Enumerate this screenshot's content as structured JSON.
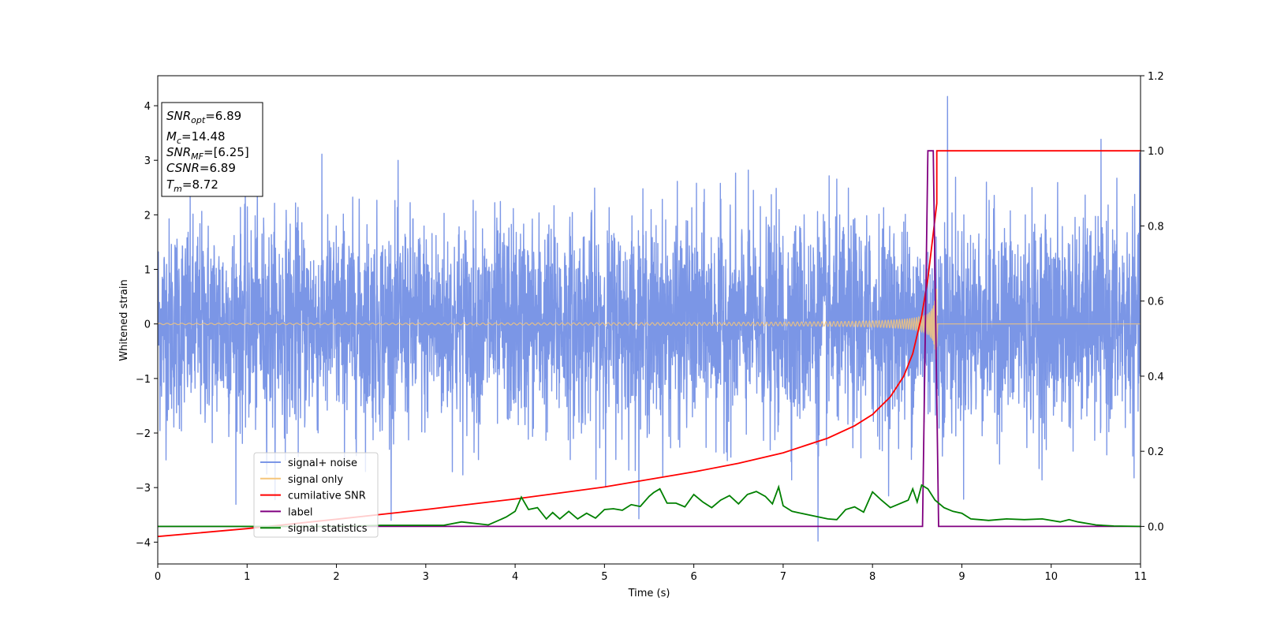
{
  "chart_data": {
    "type": "line",
    "xlabel": "Time (s)",
    "ylabel": "Whitened strain",
    "xlim": [
      0,
      11
    ],
    "ylim": [
      -4.4,
      4.55
    ],
    "y2lim": [
      -0.1,
      1.2
    ],
    "x_ticks": [
      0,
      1,
      2,
      3,
      4,
      5,
      6,
      7,
      8,
      9,
      10,
      11
    ],
    "y_ticks": [
      -4,
      -3,
      -2,
      -1,
      0,
      1,
      2,
      3,
      4
    ],
    "y2_ticks": [
      "0.0",
      "0.2",
      "0.4",
      "0.6",
      "0.8",
      "1.0",
      "1.2"
    ],
    "legend_position": "lower-left",
    "series": [
      {
        "name": "signal+ noise",
        "axis": "left",
        "color": "#7b96e6",
        "form": "noise",
        "noise_sigma": 0.95,
        "peak": [
          8.84,
          4.17
        ],
        "trough": [
          7.39,
          -3.98
        ]
      },
      {
        "name": "signal only",
        "axis": "left",
        "color": "#f5c57a",
        "form": "chirp",
        "merger_time": 8.72,
        "end_amplitude": 0.65
      },
      {
        "name": "cumilative SNR",
        "axis": "right",
        "color": "#ff0000",
        "x": [
          0,
          1,
          2,
          3,
          4,
          5,
          6,
          6.5,
          7,
          7.5,
          7.8,
          8,
          8.2,
          8.35,
          8.45,
          8.55,
          8.62,
          8.68,
          8.72,
          8.72,
          11
        ],
        "values": [
          -0.027,
          -0.006,
          0.019,
          0.045,
          0.073,
          0.105,
          0.145,
          0.168,
          0.196,
          0.235,
          0.268,
          0.298,
          0.345,
          0.4,
          0.46,
          0.56,
          0.66,
          0.78,
          0.86,
          1.0,
          1.0
        ]
      },
      {
        "name": "label",
        "axis": "right",
        "color": "#800080",
        "x": [
          0,
          8.56,
          8.62,
          8.68,
          8.74,
          11
        ],
        "values": [
          0,
          0,
          1,
          1,
          0,
          0
        ]
      },
      {
        "name": "signal statistics",
        "axis": "right",
        "color": "#008000",
        "x": [
          0,
          1,
          2,
          2.5,
          3.2,
          3.4,
          3.7,
          3.9,
          4.0,
          4.07,
          4.15,
          4.25,
          4.35,
          4.42,
          4.5,
          4.6,
          4.7,
          4.8,
          4.9,
          5.0,
          5.1,
          5.2,
          5.3,
          5.4,
          5.5,
          5.55,
          5.62,
          5.7,
          5.8,
          5.9,
          6.0,
          6.1,
          6.2,
          6.3,
          6.4,
          6.5,
          6.6,
          6.7,
          6.8,
          6.88,
          6.95,
          7.0,
          7.1,
          7.2,
          7.3,
          7.4,
          7.5,
          7.6,
          7.7,
          7.8,
          7.9,
          8.0,
          8.1,
          8.2,
          8.3,
          8.4,
          8.45,
          8.5,
          8.55,
          8.62,
          8.7,
          8.8,
          8.9,
          9.0,
          9.1,
          9.2,
          9.3,
          9.5,
          9.7,
          9.9,
          10.1,
          10.2,
          10.3,
          10.5,
          10.7,
          11
        ],
        "values": [
          0.0,
          0.0,
          0.0,
          0.003,
          0.003,
          0.012,
          0.004,
          0.025,
          0.04,
          0.078,
          0.045,
          0.05,
          0.02,
          0.037,
          0.02,
          0.04,
          0.02,
          0.035,
          0.022,
          0.045,
          0.047,
          0.043,
          0.058,
          0.053,
          0.08,
          0.09,
          0.1,
          0.062,
          0.062,
          0.052,
          0.085,
          0.065,
          0.05,
          0.07,
          0.082,
          0.06,
          0.085,
          0.093,
          0.08,
          0.06,
          0.105,
          0.055,
          0.04,
          0.035,
          0.03,
          0.025,
          0.02,
          0.018,
          0.045,
          0.052,
          0.038,
          0.092,
          0.07,
          0.05,
          0.06,
          0.07,
          0.1,
          0.065,
          0.11,
          0.1,
          0.07,
          0.05,
          0.04,
          0.035,
          0.02,
          0.018,
          0.016,
          0.02,
          0.018,
          0.02,
          0.012,
          0.018,
          0.012,
          0.004,
          0.001,
          0.0
        ]
      }
    ],
    "annotation": [
      {
        "base": "SNR",
        "sub": "opt",
        "rest": "=6.89"
      },
      {
        "base": "M",
        "sub": "c",
        "rest": "=14.48"
      },
      {
        "base": "SNR",
        "sub": "MF",
        "rest": "=[6.25]"
      },
      {
        "base": "CSNR",
        "sub": "",
        "rest": "=6.89"
      },
      {
        "base": "T",
        "sub": "m",
        "rest": "=8.72"
      }
    ]
  }
}
